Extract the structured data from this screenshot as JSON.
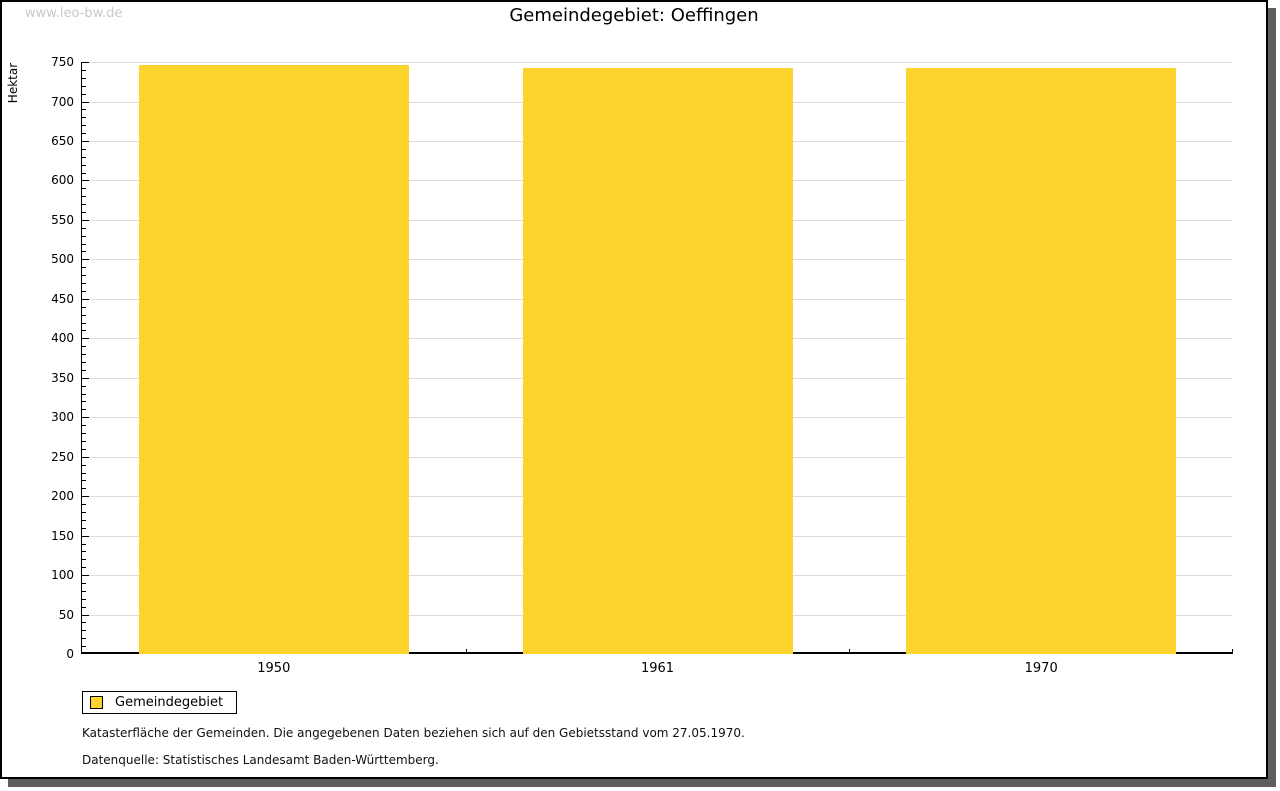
{
  "watermark": "www.leo-bw.de",
  "header": {
    "title": "Gemeindegebiet: Oeffingen"
  },
  "legend": {
    "label": "Gemeindegebiet"
  },
  "footer": {
    "line1": "Katasterfläche der Gemeinden. Die angegebenen Daten beziehen sich auf den Gebietsstand vom 27.05.1970.",
    "line2": "Datenquelle: Statistisches Landesamt Baden-Württemberg."
  },
  "colors": {
    "bar": "#FCD42D",
    "grid": "#DDDDDD",
    "axis": "#000000",
    "watermark": "#C9C9C9",
    "frame_shadow": "#5E5E5E"
  },
  "chart_data": {
    "type": "bar",
    "title": "Gemeindegebiet: Oeffingen",
    "categories": [
      "1950",
      "1961",
      "1970"
    ],
    "series": [
      {
        "name": "Gemeindegebiet",
        "values": [
          746,
          743,
          743
        ]
      }
    ],
    "xlabel": "",
    "ylabel": "Hektar",
    "ylim": [
      0,
      750
    ],
    "ytick_major": 50,
    "ytick_minor": 10,
    "grid": true,
    "legend_position": "bottom-left",
    "bar_color": "#FCD42D"
  }
}
